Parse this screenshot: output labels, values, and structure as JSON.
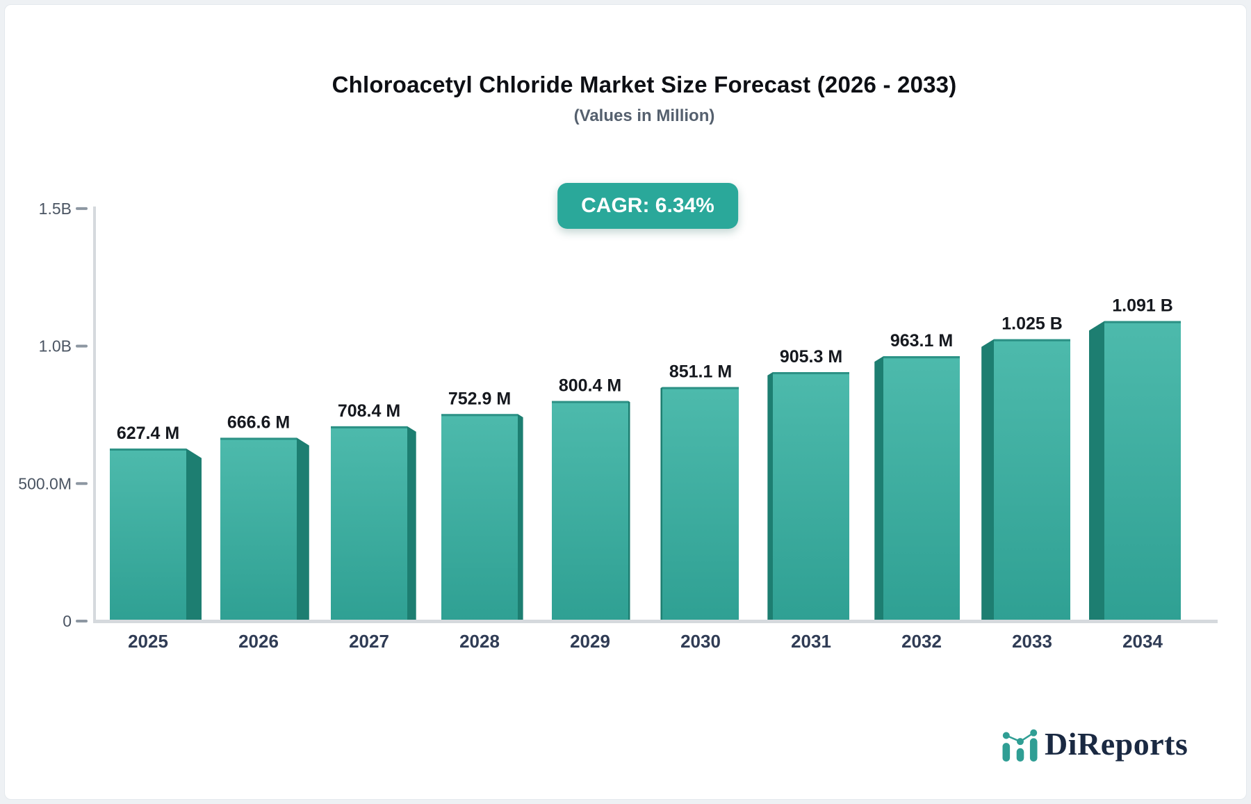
{
  "page": {
    "outer_background": "#eef1f4",
    "card_background": "#ffffff"
  },
  "chart_data": {
    "type": "bar",
    "title": "Chloroacetyl Chloride Market Size Forecast (2026 - 2033)",
    "subtitle": "(Values in Million)",
    "badge_label": "CAGR: 6.34%",
    "categories": [
      "2025",
      "2026",
      "2027",
      "2028",
      "2029",
      "2030",
      "2031",
      "2032",
      "2033",
      "2034"
    ],
    "values_millions": [
      627.4,
      666.6,
      708.4,
      752.9,
      800.4,
      851.1,
      905.3,
      963.1,
      1025,
      1091
    ],
    "value_labels": [
      "627.4 M",
      "666.6 M",
      "708.4 M",
      "752.9 M",
      "800.4 M",
      "851.1 M",
      "905.3 M",
      "963.1 M",
      "1.025 B",
      "1.091 B"
    ],
    "y_axis": {
      "max_millions": 1500,
      "ticks": [
        {
          "value": 0,
          "label": "0"
        },
        {
          "value": 500,
          "label": "500.0M"
        },
        {
          "value": 1000,
          "label": "1.0B"
        },
        {
          "value": 1500,
          "label": "1.5B"
        }
      ]
    },
    "grid": false,
    "legend": false,
    "style_3d": "perspective bars, side faces toward chart center",
    "colors": {
      "bar_face_top": "#4dbaac",
      "bar_face_bottom": "#2fa093",
      "bar_top_edge": "#2c9185",
      "bar_side": "#1d7e71",
      "badge_bg": "#2aa89a",
      "axis_line": "#d5d9dd",
      "tick_dash": "#8d97a2",
      "value_label": "#15181e",
      "x_label": "#303c55",
      "y_label": "#4a5462"
    }
  },
  "brand": {
    "name": "DiReports",
    "logo_icon": "mini-bar-line-chart-icon",
    "text_color": "#1a2942",
    "icon_color": "#2f9e94"
  }
}
